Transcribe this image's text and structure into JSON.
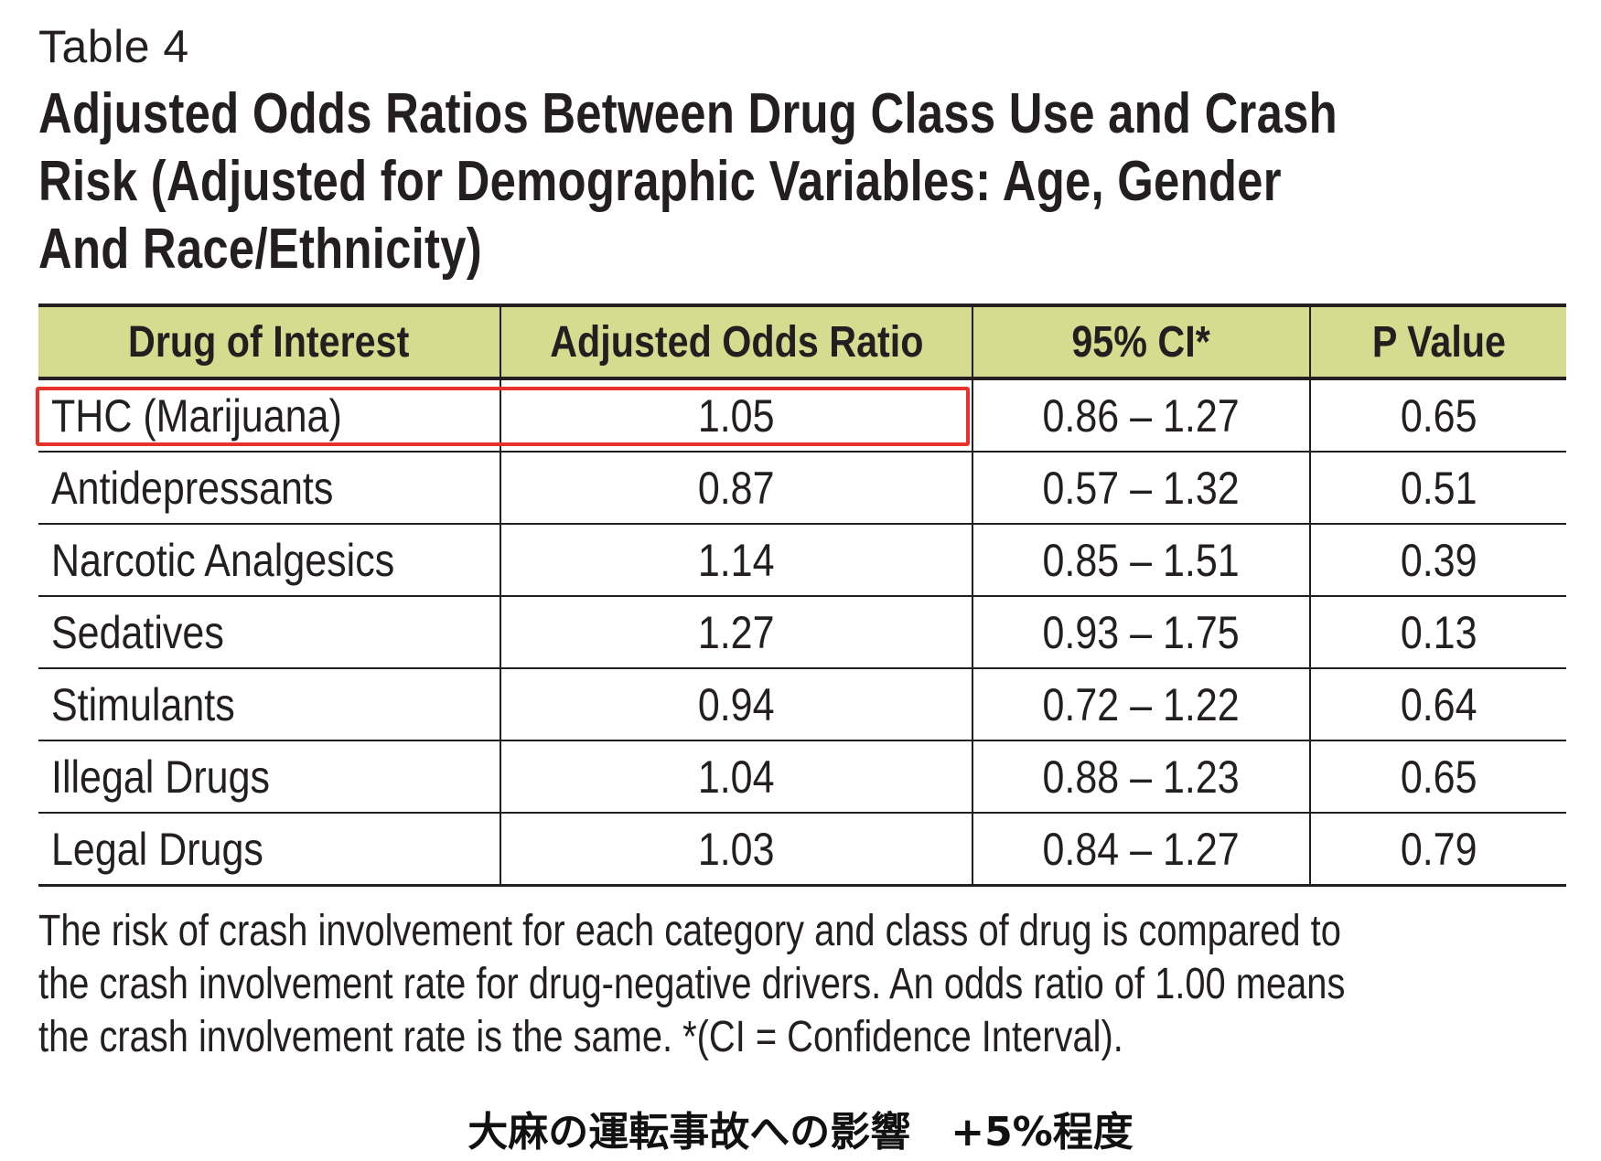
{
  "table_label": "Table 4",
  "title_lines": [
    "Adjusted Odds Ratios Between Drug Class Use and Crash",
    "Risk (Adjusted for Demographic Variables: Age, Gender",
    "And Race/Ethnicity)"
  ],
  "header_color": "#d6dc8f",
  "highlight_color": "#e8312a",
  "columns": [
    "Drug of Interest",
    "Adjusted Odds Ratio",
    "95% CI*",
    "P Value"
  ],
  "rows": [
    {
      "drug": "THC (Marijuana)",
      "aor": "1.05",
      "ci": "0.86 – 1.27",
      "p": "0.65"
    },
    {
      "drug": "Antidepressants",
      "aor": "0.87",
      "ci": "0.57 – 1.32",
      "p": "0.51"
    },
    {
      "drug": "Narcotic Analgesics",
      "aor": "1.14",
      "ci": "0.85 – 1.51",
      "p": "0.39"
    },
    {
      "drug": "Sedatives",
      "aor": "1.27",
      "ci": "0.93 – 1.75",
      "p": "0.13"
    },
    {
      "drug": "Stimulants",
      "aor": "0.94",
      "ci": "0.72 – 1.22",
      "p": "0.64"
    },
    {
      "drug": "Illegal Drugs",
      "aor": "1.04",
      "ci": "0.88 – 1.23",
      "p": "0.65"
    },
    {
      "drug": "Legal Drugs",
      "aor": "1.03",
      "ci": "0.84 – 1.27",
      "p": "0.79"
    }
  ],
  "footnote_lines": [
    "The risk of crash involvement for each category and class of drug is compared to",
    "the crash involvement rate for drug-negative drivers. An odds ratio of 1.00 means",
    "the crash involvement rate is the same.   *(CI = Confidence Interval)."
  ],
  "caption": "大麻の運転事故への影響　+5%程度"
}
